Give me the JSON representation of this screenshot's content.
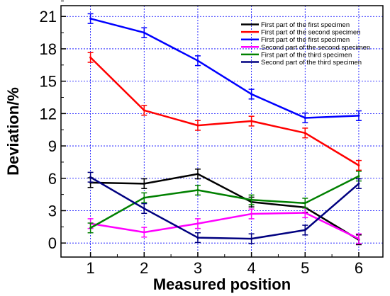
{
  "chart_data": {
    "type": "line",
    "title": "",
    "xlabel": "Measured position",
    "ylabel": "Deviation/%",
    "x": [
      1,
      2,
      3,
      4,
      5,
      6
    ],
    "x_ticks": [
      "1",
      "2",
      "3",
      "4",
      "5",
      "6"
    ],
    "xlim": [
      0.45,
      6.45
    ],
    "y_ticks": [
      "0",
      "3",
      "6",
      "9",
      "12",
      "15",
      "18",
      "21"
    ],
    "ylim": [
      -1.3,
      22
    ],
    "grid": true,
    "error_bars": true,
    "legend_position": "top-right",
    "series": [
      {
        "name": "First part of the first specimen",
        "color": "#000000",
        "values": [
          5.6,
          5.5,
          6.4,
          3.8,
          3.3,
          0.3
        ],
        "errors": [
          0.45,
          0.45,
          0.45,
          0.45,
          0.45,
          0.45
        ]
      },
      {
        "name": "First part of the second specimen",
        "color": "#ff0000",
        "values": [
          17.2,
          12.3,
          10.9,
          11.3,
          10.2,
          7.2
        ],
        "errors": [
          0.45,
          0.45,
          0.45,
          0.45,
          0.45,
          0.45
        ]
      },
      {
        "name": "First part of the first specimen",
        "color": "#0000ff",
        "values": [
          20.8,
          19.5,
          16.9,
          13.8,
          11.6,
          11.8
        ],
        "errors": [
          0.45,
          0.45,
          0.45,
          0.45,
          0.45,
          0.45
        ]
      },
      {
        "name": "Second part of the second specimen",
        "color": "#ff00ff",
        "values": [
          1.8,
          1.0,
          1.8,
          2.7,
          2.8,
          0.4
        ],
        "errors": [
          0.45,
          0.45,
          0.45,
          0.45,
          0.45,
          0.45
        ]
      },
      {
        "name": "First part of the third specimen",
        "color": "#008000",
        "values": [
          1.4,
          4.2,
          4.9,
          4.0,
          3.7,
          6.2
        ],
        "errors": [
          0.45,
          0.45,
          0.45,
          0.45,
          0.45,
          0.45
        ]
      },
      {
        "name": "Second part of the third specimen",
        "color": "#000080",
        "values": [
          6.1,
          3.2,
          0.5,
          0.4,
          1.2,
          5.5
        ],
        "errors": [
          0.45,
          0.45,
          0.45,
          0.45,
          0.45,
          0.45
        ]
      }
    ]
  }
}
